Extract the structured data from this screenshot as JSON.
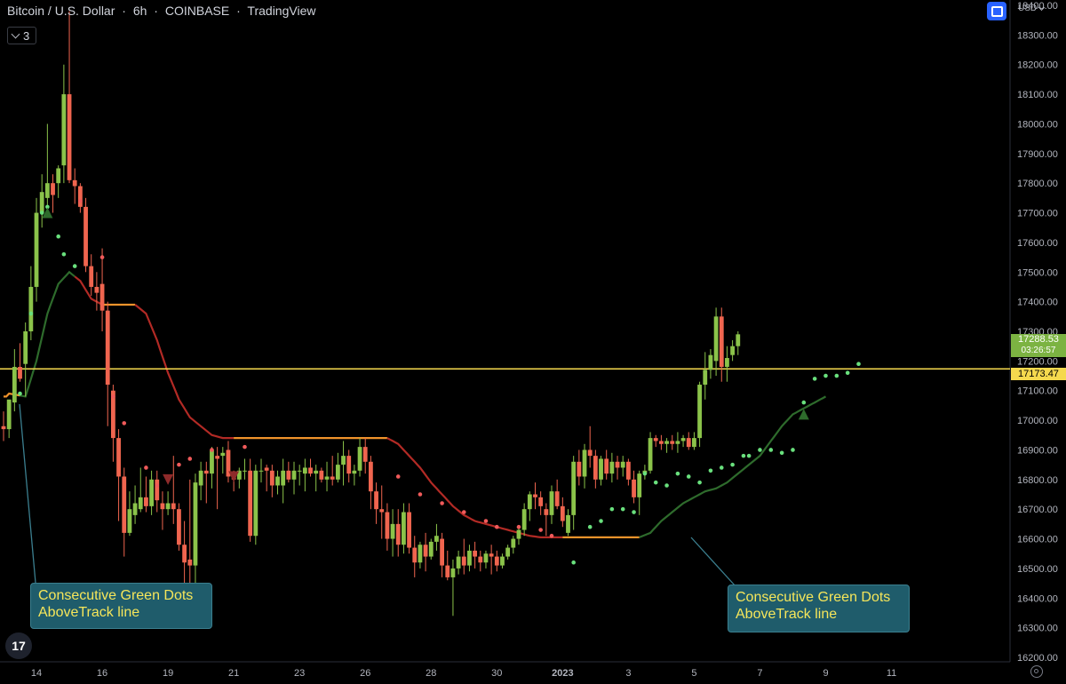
{
  "header": {
    "symbol": "Bitcoin / U.S. Dollar",
    "sep1": "·",
    "interval": "6h",
    "sep2": "·",
    "exchange": "COINBASE",
    "sep3": "·",
    "platform": "TradingView"
  },
  "indicator_toggle": {
    "count": "3",
    "icon": "chevron-down-icon"
  },
  "currency": "USD",
  "price_labels": {
    "last_price": "17288.53",
    "countdown": "03:26:57",
    "hline_price": "17173.47"
  },
  "callouts": [
    {
      "text_line1": "Consecutive Green Dots",
      "text_line2": "AboveTrack line"
    },
    {
      "text_line1": "Consecutive Green Dots",
      "text_line2": "AboveTrack line"
    }
  ],
  "colors": {
    "up": "#8bc34a",
    "down": "#f0654f",
    "track_up": "#2e6b2c",
    "track_down": "#b22a25",
    "flat": "#f0932b",
    "hline": "#f5d94e",
    "dot_green": "#69e07d",
    "dot_red": "#f05a5a",
    "callout_bg": "#1f5c6b",
    "callout_text": "#f6e65a"
  },
  "chart_data": {
    "type": "candlestick",
    "y_axis": {
      "min": 16200,
      "max": 18400,
      "ticks": [
        "16200.00",
        "16300.00",
        "16400.00",
        "16500.00",
        "16600.00",
        "16700.00",
        "16800.00",
        "16900.00",
        "17000.00",
        "17100.00",
        "17200.00",
        "17300.00",
        "17400.00",
        "17500.00",
        "17600.00",
        "17700.00",
        "17800.00",
        "17900.00",
        "18000.00",
        "18100.00",
        "18200.00",
        "18300.00",
        "18400.00"
      ]
    },
    "x_axis": {
      "labels": [
        {
          "i": 6,
          "text": "14"
        },
        {
          "i": 18,
          "text": "16"
        },
        {
          "i": 30,
          "text": "19"
        },
        {
          "i": 42,
          "text": "21"
        },
        {
          "i": 54,
          "text": "23"
        },
        {
          "i": 66,
          "text": "26"
        },
        {
          "i": 78,
          "text": "28"
        },
        {
          "i": 90,
          "text": "30"
        },
        {
          "i": 102,
          "text": "2023",
          "bold": true
        },
        {
          "i": 114,
          "text": "3"
        },
        {
          "i": 126,
          "text": "5"
        },
        {
          "i": 138,
          "text": "7"
        },
        {
          "i": 150,
          "text": "9"
        },
        {
          "i": 162,
          "text": "11"
        }
      ]
    },
    "horizontal_line": 17173.47,
    "candles": [
      [
        16980,
        17030,
        16930,
        16970
      ],
      [
        16970,
        17060,
        16940,
        17070
      ],
      [
        17060,
        17240,
        17030,
        17180
      ],
      [
        17180,
        17260,
        17130,
        17140
      ],
      [
        17190,
        17330,
        17080,
        17300
      ],
      [
        17300,
        17520,
        17270,
        17450
      ],
      [
        17450,
        17750,
        17400,
        17700
      ],
      [
        17700,
        17830,
        17650,
        17770
      ],
      [
        17750,
        18000,
        17700,
        17800
      ],
      [
        17800,
        17830,
        17700,
        17760
      ],
      [
        17800,
        17860,
        17750,
        17850
      ],
      [
        17860,
        18200,
        17800,
        18100
      ],
      [
        18100,
        18380,
        17800,
        17810
      ],
      [
        17810,
        17850,
        17730,
        17790
      ],
      [
        17790,
        17800,
        17700,
        17720
      ],
      [
        17720,
        17750,
        17500,
        17520
      ],
      [
        17520,
        17560,
        17420,
        17450
      ],
      [
        17450,
        17500,
        17370,
        17430
      ],
      [
        17460,
        17580,
        17300,
        17370
      ],
      [
        17370,
        17400,
        16980,
        17120
      ],
      [
        17100,
        17120,
        16860,
        16940
      ],
      [
        16940,
        16970,
        16660,
        16810
      ],
      [
        16810,
        16840,
        16540,
        16620
      ],
      [
        16620,
        16760,
        16610,
        16700
      ],
      [
        16680,
        16780,
        16650,
        16720
      ],
      [
        16700,
        16840,
        16690,
        16740
      ],
      [
        16740,
        16810,
        16690,
        16710
      ],
      [
        16710,
        16830,
        16680,
        16800
      ],
      [
        16800,
        16830,
        16690,
        16730
      ],
      [
        16720,
        16760,
        16630,
        16700
      ],
      [
        16700,
        16760,
        16680,
        16720
      ],
      [
        16720,
        16880,
        16650,
        16700
      ],
      [
        16700,
        16720,
        16560,
        16580
      ],
      [
        16580,
        16660,
        16450,
        16520
      ],
      [
        16530,
        16800,
        16310,
        16510
      ],
      [
        16510,
        16820,
        16450,
        16790
      ],
      [
        16780,
        16860,
        16730,
        16830
      ],
      [
        16830,
        16860,
        16720,
        16820
      ],
      [
        16820,
        16910,
        16770,
        16900
      ],
      [
        16880,
        16910,
        16700,
        16870
      ],
      [
        16880,
        16910,
        16820,
        16890
      ],
      [
        16900,
        16930,
        16790,
        16810
      ],
      [
        16810,
        16830,
        16760,
        16800
      ],
      [
        16800,
        16840,
        16770,
        16830
      ],
      [
        16830,
        16870,
        16800,
        16830
      ],
      [
        16830,
        16870,
        16590,
        16610
      ],
      [
        16610,
        16850,
        16580,
        16830
      ],
      [
        16830,
        16870,
        16790,
        16830
      ],
      [
        16840,
        16850,
        16760,
        16830
      ],
      [
        16830,
        16850,
        16740,
        16780
      ],
      [
        16780,
        16830,
        16750,
        16810
      ],
      [
        16780,
        16870,
        16720,
        16830
      ],
      [
        16830,
        16860,
        16790,
        16800
      ],
      [
        16800,
        16860,
        16750,
        16830
      ],
      [
        16830,
        16850,
        16780,
        16830
      ],
      [
        16820,
        16870,
        16760,
        16840
      ],
      [
        16840,
        16870,
        16810,
        16820
      ],
      [
        16820,
        16850,
        16760,
        16830
      ],
      [
        16830,
        16840,
        16790,
        16800
      ],
      [
        16800,
        16860,
        16760,
        16810
      ],
      [
        16810,
        16880,
        16780,
        16800
      ],
      [
        16800,
        16890,
        16790,
        16850
      ],
      [
        16850,
        16930,
        16780,
        16880
      ],
      [
        16880,
        16900,
        16790,
        16820
      ],
      [
        16820,
        16850,
        16780,
        16830
      ],
      [
        16830,
        16940,
        16810,
        16910
      ],
      [
        16910,
        16940,
        16820,
        16860
      ],
      [
        16860,
        16880,
        16700,
        16760
      ],
      [
        16760,
        16790,
        16650,
        16700
      ],
      [
        16700,
        16780,
        16600,
        16690
      ],
      [
        16690,
        16720,
        16560,
        16600
      ],
      [
        16600,
        16700,
        16540,
        16650
      ],
      [
        16650,
        16700,
        16540,
        16580
      ],
      [
        16580,
        16720,
        16550,
        16690
      ],
      [
        16690,
        16720,
        16550,
        16570
      ],
      [
        16570,
        16610,
        16470,
        16520
      ],
      [
        16520,
        16590,
        16500,
        16580
      ],
      [
        16580,
        16620,
        16490,
        16540
      ],
      [
        16540,
        16600,
        16530,
        16590
      ],
      [
        16590,
        16650,
        16560,
        16610
      ],
      [
        16600,
        16620,
        16470,
        16510
      ],
      [
        16510,
        16560,
        16460,
        16470
      ],
      [
        16470,
        16530,
        16340,
        16500
      ],
      [
        16500,
        16560,
        16480,
        16540
      ],
      [
        16540,
        16600,
        16480,
        16510
      ],
      [
        16510,
        16580,
        16490,
        16560
      ],
      [
        16560,
        16590,
        16500,
        16540
      ],
      [
        16540,
        16560,
        16490,
        16520
      ],
      [
        16520,
        16560,
        16500,
        16550
      ],
      [
        16550,
        16580,
        16480,
        16540
      ],
      [
        16540,
        16560,
        16490,
        16510
      ],
      [
        16510,
        16550,
        16500,
        16540
      ],
      [
        16540,
        16580,
        16530,
        16570
      ],
      [
        16570,
        16610,
        16550,
        16600
      ],
      [
        16600,
        16640,
        16580,
        16630
      ],
      [
        16630,
        16720,
        16610,
        16700
      ],
      [
        16700,
        16760,
        16660,
        16750
      ],
      [
        16750,
        16790,
        16700,
        16740
      ],
      [
        16740,
        16760,
        16680,
        16710
      ],
      [
        16700,
        16720,
        16610,
        16680
      ],
      [
        16680,
        16780,
        16650,
        16760
      ],
      [
        16760,
        16800,
        16700,
        16710
      ],
      [
        16710,
        16740,
        16640,
        16660
      ],
      [
        16620,
        16700,
        16610,
        16680
      ],
      [
        16680,
        16880,
        16630,
        16860
      ],
      [
        16860,
        16900,
        16780,
        16810
      ],
      [
        16810,
        16920,
        16770,
        16900
      ],
      [
        16900,
        16980,
        16840,
        16880
      ],
      [
        16880,
        16900,
        16770,
        16800
      ],
      [
        16800,
        16880,
        16780,
        16870
      ],
      [
        16870,
        16900,
        16800,
        16820
      ],
      [
        16820,
        16890,
        16790,
        16860
      ],
      [
        16860,
        16880,
        16800,
        16840
      ],
      [
        16840,
        16880,
        16810,
        16860
      ],
      [
        16860,
        16870,
        16780,
        16800
      ],
      [
        16800,
        16830,
        16720,
        16740
      ],
      [
        16740,
        16830,
        16680,
        16820
      ],
      [
        16820,
        16850,
        16800,
        16830
      ],
      [
        16830,
        16960,
        16820,
        16940
      ],
      [
        16940,
        16950,
        16910,
        16930
      ],
      [
        16930,
        16950,
        16900,
        16920
      ],
      [
        16920,
        16940,
        16890,
        16930
      ],
      [
        16930,
        16950,
        16900,
        16920
      ],
      [
        16920,
        16960,
        16890,
        16930
      ],
      [
        16930,
        16950,
        16910,
        16940
      ],
      [
        16940,
        16960,
        16900,
        16910
      ],
      [
        16910,
        16960,
        16900,
        16940
      ],
      [
        16940,
        17130,
        16910,
        17120
      ],
      [
        17120,
        17230,
        17070,
        17170
      ],
      [
        17170,
        17240,
        17140,
        17220
      ],
      [
        17200,
        17380,
        17150,
        17350
      ],
      [
        17350,
        17380,
        17130,
        17180
      ],
      [
        17180,
        17250,
        17130,
        17210
      ],
      [
        17220,
        17270,
        17200,
        17250
      ],
      [
        17250,
        17300,
        17220,
        17290
      ]
    ],
    "track_line": [
      [
        1,
        17090
      ],
      [
        4,
        17080
      ],
      [
        6,
        17200
      ],
      [
        8,
        17360
      ],
      [
        10,
        17460
      ],
      [
        12,
        17500
      ],
      [
        14,
        17470
      ],
      [
        16,
        17410
      ],
      [
        18,
        17390
      ],
      [
        20,
        17390
      ],
      [
        22,
        17390
      ],
      [
        24,
        17390
      ],
      [
        26,
        17360
      ],
      [
        28,
        17270
      ],
      [
        30,
        17160
      ],
      [
        32,
        17070
      ],
      [
        34,
        17010
      ],
      [
        36,
        16980
      ],
      [
        38,
        16950
      ],
      [
        40,
        16940
      ],
      [
        42,
        16940
      ],
      [
        50,
        16940
      ],
      [
        60,
        16940
      ],
      [
        70,
        16940
      ],
      [
        72,
        16920
      ],
      [
        74,
        16880
      ],
      [
        76,
        16840
      ],
      [
        78,
        16790
      ],
      [
        80,
        16750
      ],
      [
        82,
        16710
      ],
      [
        84,
        16680
      ],
      [
        86,
        16660
      ],
      [
        88,
        16650
      ],
      [
        90,
        16640
      ],
      [
        92,
        16630
      ],
      [
        94,
        16620
      ],
      [
        96,
        16610
      ],
      [
        98,
        16605
      ],
      [
        100,
        16605
      ],
      [
        102,
        16605
      ],
      [
        104,
        16605
      ],
      [
        106,
        16605
      ],
      [
        108,
        16605
      ],
      [
        110,
        16605
      ],
      [
        112,
        16605
      ],
      [
        114,
        16605
      ],
      [
        116,
        16605
      ],
      [
        118,
        16620
      ],
      [
        120,
        16660
      ],
      [
        122,
        16690
      ],
      [
        124,
        16720
      ],
      [
        126,
        16740
      ],
      [
        128,
        16760
      ],
      [
        130,
        16770
      ],
      [
        132,
        16790
      ],
      [
        134,
        16820
      ],
      [
        136,
        16850
      ],
      [
        138,
        16880
      ],
      [
        140,
        16930
      ],
      [
        142,
        16980
      ],
      [
        144,
        17020
      ],
      [
        146,
        17040
      ],
      [
        148,
        17060
      ],
      [
        150,
        17080
      ]
    ],
    "track_segments": [
      {
        "from": 0,
        "to": 3,
        "state": "flat"
      },
      {
        "from": 3,
        "to": 13,
        "state": "up"
      },
      {
        "from": 13,
        "to": 18,
        "state": "down"
      },
      {
        "from": 18,
        "to": 24,
        "state": "flat"
      },
      {
        "from": 24,
        "to": 42,
        "state": "down"
      },
      {
        "from": 42,
        "to": 70,
        "state": "flat"
      },
      {
        "from": 70,
        "to": 102,
        "state": "down"
      },
      {
        "from": 102,
        "to": 116,
        "state": "flat"
      },
      {
        "from": 116,
        "to": 150,
        "state": "up"
      }
    ],
    "green_dots": [
      [
        3,
        17090
      ],
      [
        5,
        17360
      ],
      [
        7,
        17700
      ],
      [
        8,
        17720
      ],
      [
        10,
        17620
      ],
      [
        11,
        17560
      ],
      [
        13,
        17520
      ],
      [
        104,
        16520
      ],
      [
        107,
        16640
      ],
      [
        109,
        16660
      ],
      [
        111,
        16700
      ],
      [
        113,
        16700
      ],
      [
        115,
        16690
      ],
      [
        117,
        16820
      ],
      [
        119,
        16790
      ],
      [
        121,
        16780
      ],
      [
        123,
        16820
      ],
      [
        125,
        16810
      ],
      [
        127,
        16790
      ],
      [
        129,
        16830
      ],
      [
        131,
        16840
      ],
      [
        133,
        16850
      ],
      [
        135,
        16880
      ],
      [
        136,
        16880
      ],
      [
        138,
        16900
      ],
      [
        140,
        16900
      ],
      [
        142,
        16890
      ],
      [
        144,
        16900
      ],
      [
        146,
        17060
      ],
      [
        148,
        17140
      ],
      [
        150,
        17150
      ],
      [
        152,
        17150
      ],
      [
        154,
        17160
      ],
      [
        156,
        17190
      ]
    ],
    "red_dots": [
      [
        14,
        17740
      ],
      [
        18,
        17550
      ],
      [
        20,
        17080
      ],
      [
        22,
        16990
      ],
      [
        26,
        16840
      ],
      [
        28,
        16780
      ],
      [
        32,
        16850
      ],
      [
        34,
        16870
      ],
      [
        38,
        16900
      ],
      [
        44,
        16910
      ],
      [
        72,
        16810
      ],
      [
        76,
        16750
      ],
      [
        80,
        16720
      ],
      [
        84,
        16690
      ],
      [
        88,
        16660
      ],
      [
        90,
        16640
      ],
      [
        94,
        16640
      ],
      [
        98,
        16630
      ],
      [
        100,
        16610
      ]
    ],
    "triangles_up": [
      [
        8,
        17700
      ],
      [
        146,
        17020
      ]
    ],
    "triangles_down": [
      [
        30,
        16800
      ],
      [
        42,
        16810
      ]
    ]
  }
}
